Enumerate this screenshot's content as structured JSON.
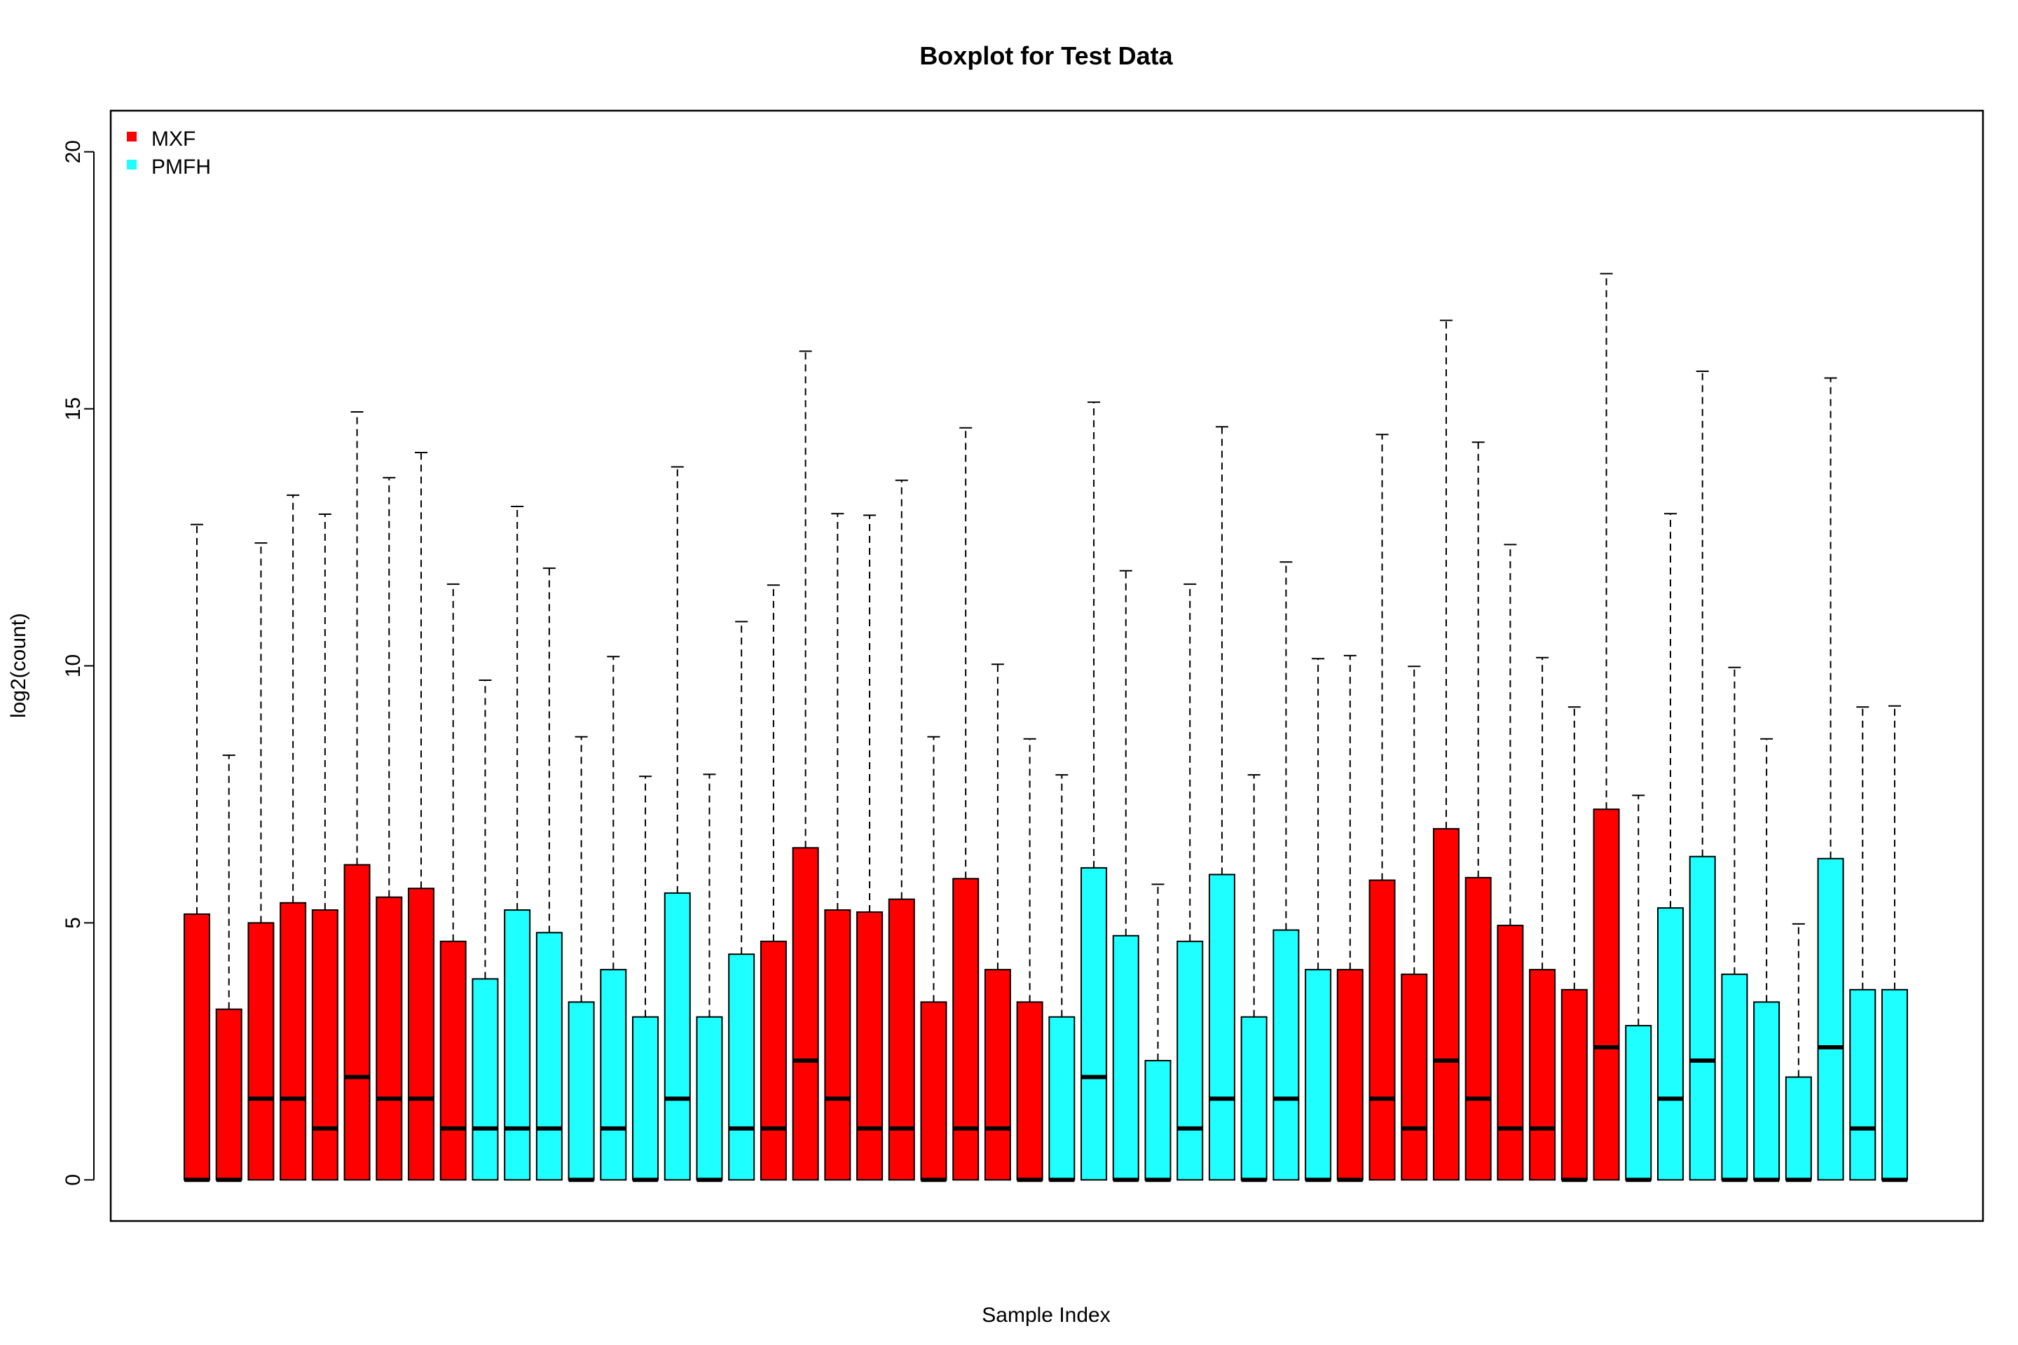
{
  "chart_data": {
    "type": "boxplot",
    "title": "Boxplot for Test Data",
    "xlabel": "Sample Index",
    "ylabel": "log2(count)",
    "ylim": [
      -0.8,
      20.8
    ],
    "y_ticks": [
      0,
      5,
      10,
      15,
      20
    ],
    "y_tick_labels": [
      "0",
      "5",
      "10",
      "15",
      "20"
    ],
    "grid": false,
    "legend": {
      "position": "top-left",
      "entries": [
        {
          "label": "MXF",
          "color": "#ff0000"
        },
        {
          "label": "PMFH",
          "color": "#1effff"
        }
      ]
    },
    "colors": {
      "MXF": "#ff0000",
      "PMFH": "#1effff"
    },
    "boxes": [
      {
        "group": "MXF",
        "lower": 0,
        "median": 0,
        "upper": 5.17,
        "whisker_high": 12.75
      },
      {
        "group": "MXF",
        "lower": 0,
        "median": 0,
        "upper": 3.32,
        "whisker_high": 8.26
      },
      {
        "group": "MXF",
        "lower": 0,
        "median": 1.58,
        "upper": 5.0,
        "whisker_high": 12.39
      },
      {
        "group": "MXF",
        "lower": 0,
        "median": 1.58,
        "upper": 5.39,
        "whisker_high": 13.32
      },
      {
        "group": "MXF",
        "lower": 0,
        "median": 1.0,
        "upper": 5.25,
        "whisker_high": 12.95
      },
      {
        "group": "MXF",
        "lower": 0,
        "median": 2.0,
        "upper": 6.13,
        "whisker_high": 14.94
      },
      {
        "group": "MXF",
        "lower": 0,
        "median": 1.58,
        "upper": 5.5,
        "whisker_high": 13.66
      },
      {
        "group": "MXF",
        "lower": 0,
        "median": 1.58,
        "upper": 5.67,
        "whisker_high": 14.15
      },
      {
        "group": "MXF",
        "lower": 0,
        "median": 1.0,
        "upper": 4.64,
        "whisker_high": 11.59
      },
      {
        "group": "PMFH",
        "lower": 0,
        "median": 1.0,
        "upper": 3.91,
        "whisker_high": 9.72
      },
      {
        "group": "PMFH",
        "lower": 0,
        "median": 1.0,
        "upper": 5.25,
        "whisker_high": 13.1
      },
      {
        "group": "PMFH",
        "lower": 0,
        "median": 1.0,
        "upper": 4.81,
        "whisker_high": 11.9
      },
      {
        "group": "PMFH",
        "lower": 0,
        "median": 0,
        "upper": 3.46,
        "whisker_high": 8.62
      },
      {
        "group": "PMFH",
        "lower": 0,
        "median": 1.0,
        "upper": 4.09,
        "whisker_high": 10.18
      },
      {
        "group": "PMFH",
        "lower": 0,
        "median": 0,
        "upper": 3.17,
        "whisker_high": 7.85
      },
      {
        "group": "PMFH",
        "lower": 0,
        "median": 1.58,
        "upper": 5.58,
        "whisker_high": 13.87
      },
      {
        "group": "PMFH",
        "lower": 0,
        "median": 0,
        "upper": 3.17,
        "whisker_high": 7.89
      },
      {
        "group": "PMFH",
        "lower": 0,
        "median": 1.0,
        "upper": 4.39,
        "whisker_high": 10.86
      },
      {
        "group": "MXF",
        "lower": 0,
        "median": 1.0,
        "upper": 4.64,
        "whisker_high": 11.57
      },
      {
        "group": "MXF",
        "lower": 0,
        "median": 2.32,
        "upper": 6.46,
        "whisker_high": 16.12
      },
      {
        "group": "MXF",
        "lower": 0,
        "median": 1.58,
        "upper": 5.25,
        "whisker_high": 12.96
      },
      {
        "group": "MXF",
        "lower": 0,
        "median": 1.0,
        "upper": 5.21,
        "whisker_high": 12.93
      },
      {
        "group": "MXF",
        "lower": 0,
        "median": 1.0,
        "upper": 5.46,
        "whisker_high": 13.61
      },
      {
        "group": "MXF",
        "lower": 0,
        "median": 0,
        "upper": 3.46,
        "whisker_high": 8.62
      },
      {
        "group": "MXF",
        "lower": 0,
        "median": 1.0,
        "upper": 5.86,
        "whisker_high": 14.63
      },
      {
        "group": "MXF",
        "lower": 0,
        "median": 1.0,
        "upper": 4.09,
        "whisker_high": 10.03
      },
      {
        "group": "MXF",
        "lower": 0,
        "median": 0,
        "upper": 3.46,
        "whisker_high": 8.58
      },
      {
        "group": "PMFH",
        "lower": 0,
        "median": 0,
        "upper": 3.17,
        "whisker_high": 7.88
      },
      {
        "group": "PMFH",
        "lower": 0,
        "median": 2.0,
        "upper": 6.07,
        "whisker_high": 15.13
      },
      {
        "group": "PMFH",
        "lower": 0,
        "median": 0,
        "upper": 4.75,
        "whisker_high": 11.85
      },
      {
        "group": "PMFH",
        "lower": 0,
        "median": 0,
        "upper": 2.32,
        "whisker_high": 5.75
      },
      {
        "group": "PMFH",
        "lower": 0,
        "median": 1.0,
        "upper": 4.64,
        "whisker_high": 11.59
      },
      {
        "group": "PMFH",
        "lower": 0,
        "median": 1.58,
        "upper": 5.94,
        "whisker_high": 14.65
      },
      {
        "group": "PMFH",
        "lower": 0,
        "median": 0,
        "upper": 3.17,
        "whisker_high": 7.88
      },
      {
        "group": "PMFH",
        "lower": 0,
        "median": 1.58,
        "upper": 4.86,
        "whisker_high": 12.02
      },
      {
        "group": "PMFH",
        "lower": 0,
        "median": 0,
        "upper": 4.09,
        "whisker_high": 10.14
      },
      {
        "group": "MXF",
        "lower": 0,
        "median": 0,
        "upper": 4.09,
        "whisker_high": 10.2
      },
      {
        "group": "MXF",
        "lower": 0,
        "median": 1.58,
        "upper": 5.83,
        "whisker_high": 14.5
      },
      {
        "group": "MXF",
        "lower": 0,
        "median": 1.0,
        "upper": 4.0,
        "whisker_high": 9.99
      },
      {
        "group": "MXF",
        "lower": 0,
        "median": 2.32,
        "upper": 6.83,
        "whisker_high": 16.72
      },
      {
        "group": "MXF",
        "lower": 0,
        "median": 1.58,
        "upper": 5.88,
        "whisker_high": 14.35
      },
      {
        "group": "MXF",
        "lower": 0,
        "median": 1.0,
        "upper": 4.95,
        "whisker_high": 12.36
      },
      {
        "group": "MXF",
        "lower": 0,
        "median": 1.0,
        "upper": 4.09,
        "whisker_high": 10.16
      },
      {
        "group": "MXF",
        "lower": 0,
        "median": 0,
        "upper": 3.7,
        "whisker_high": 9.2
      },
      {
        "group": "MXF",
        "lower": 0,
        "median": 2.58,
        "upper": 7.21,
        "whisker_high": 17.63
      },
      {
        "group": "PMFH",
        "lower": 0,
        "median": 0,
        "upper": 3.0,
        "whisker_high": 7.48
      },
      {
        "group": "PMFH",
        "lower": 0,
        "median": 1.58,
        "upper": 5.29,
        "whisker_high": 12.96
      },
      {
        "group": "PMFH",
        "lower": 0,
        "median": 2.32,
        "upper": 6.29,
        "whisker_high": 15.73
      },
      {
        "group": "PMFH",
        "lower": 0,
        "median": 0,
        "upper": 4.0,
        "whisker_high": 9.97
      },
      {
        "group": "PMFH",
        "lower": 0,
        "median": 0,
        "upper": 3.46,
        "whisker_high": 8.58
      },
      {
        "group": "PMFH",
        "lower": 0,
        "median": 0,
        "upper": 2.0,
        "whisker_high": 4.98
      },
      {
        "group": "PMFH",
        "lower": 0,
        "median": 2.58,
        "upper": 6.25,
        "whisker_high": 15.6
      },
      {
        "group": "PMFH",
        "lower": 0,
        "median": 1.0,
        "upper": 3.7,
        "whisker_high": 9.2
      },
      {
        "group": "PMFH",
        "lower": 0,
        "median": 0,
        "upper": 3.7,
        "whisker_high": 9.22
      }
    ]
  }
}
